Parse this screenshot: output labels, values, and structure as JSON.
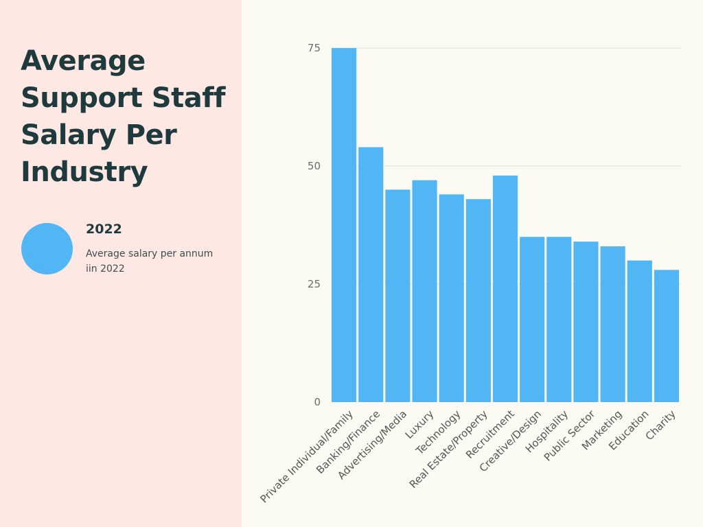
{
  "title": "Average Support Staff Salary Per Industry",
  "legend": {
    "label": "2022",
    "description": "Average salary per annum iin 2022",
    "color": "#52b6f5"
  },
  "colors": {
    "left_panel_bg": "#fde8e3",
    "chart_bg": "#fbfbf3",
    "bar": "#52b6f5",
    "title_text": "#1f3a3d"
  },
  "chart_data": {
    "type": "bar",
    "title": "Average Support Staff Salary Per Industry",
    "xlabel": "",
    "ylabel": "",
    "ylim": [
      0,
      75
    ],
    "yticks": [
      0,
      25,
      50,
      75
    ],
    "grid": true,
    "legend_position": "left",
    "categories": [
      "Private Individual/Family",
      "Banking/Finance",
      "Advertising/Media",
      "Luxury",
      "Technology",
      "Real Estate/Property",
      "Recruitment",
      "Creative/Design",
      "Hospitality",
      "Public Sector",
      "Marketing",
      "Education",
      "Charity"
    ],
    "series": [
      {
        "name": "2022",
        "values": [
          75,
          54,
          45,
          47,
          44,
          43,
          48,
          35,
          35,
          34,
          33,
          30,
          28
        ]
      }
    ]
  }
}
